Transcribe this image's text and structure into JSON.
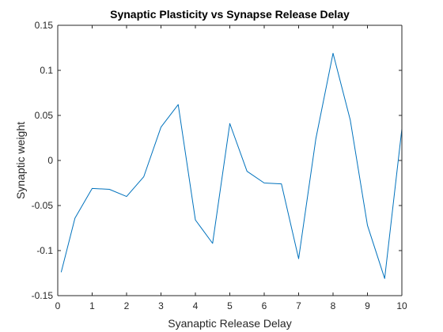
{
  "chart_data": {
    "type": "line",
    "title": "Synaptic Plasticity vs Synapse Release Delay",
    "xlabel": "Syanaptic Release Delay",
    "ylabel": "Synaptic weight",
    "xlim": [
      0,
      10
    ],
    "ylim": [
      -0.15,
      0.15
    ],
    "xticks": [
      0,
      1,
      2,
      3,
      4,
      5,
      6,
      7,
      8,
      9,
      10
    ],
    "xtick_labels": [
      "0",
      "1",
      "2",
      "3",
      "4",
      "5",
      "6",
      "7",
      "8",
      "9",
      "10"
    ],
    "yticks": [
      -0.15,
      -0.1,
      -0.05,
      0,
      0.05,
      0.1,
      0.15
    ],
    "ytick_labels": [
      "-0.15",
      "-0.1",
      "-0.05",
      "0",
      "0.05",
      "0.1",
      "0.15"
    ],
    "grid": false,
    "line_color": "#0072BD",
    "series": [
      {
        "x": [
          0.1,
          0.5,
          1.0,
          1.5,
          2.0,
          2.5,
          3.0,
          3.5,
          4.0,
          4.5,
          5.0,
          5.5,
          6.0,
          6.5,
          7.0,
          7.5,
          8.0,
          8.5,
          9.0,
          9.5,
          10.0
        ],
        "values": [
          -0.124,
          -0.064,
          -0.031,
          -0.032,
          -0.04,
          -0.018,
          0.037,
          0.062,
          -0.066,
          -0.092,
          0.041,
          -0.012,
          -0.025,
          -0.026,
          -0.109,
          0.024,
          0.119,
          0.045,
          -0.072,
          -0.131,
          0.035
        ]
      }
    ]
  }
}
